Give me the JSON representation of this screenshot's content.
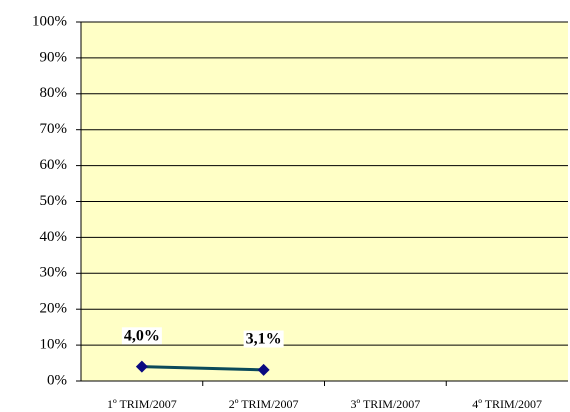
{
  "chart_data": {
    "type": "line",
    "categories": [
      "1º TRIM/2007",
      "2º TRIM/2007",
      "3º TRIM/2007",
      "4º TRIM/2007"
    ],
    "series": [
      {
        "color": "#0b4a5a",
        "marker_color": "#0a0a80",
        "values": [
          4.0,
          3.1,
          null,
          null
        ],
        "value_labels": [
          "4,0%",
          "3,1%",
          null,
          null
        ]
      }
    ],
    "ylim": [
      0,
      100
    ],
    "yticks": [
      {
        "value": 0,
        "label": "0%"
      },
      {
        "value": 10,
        "label": "10%"
      },
      {
        "value": 20,
        "label": "20%"
      },
      {
        "value": 30,
        "label": "30%"
      },
      {
        "value": 40,
        "label": "40%"
      },
      {
        "value": 50,
        "label": "50%"
      },
      {
        "value": 60,
        "label": "60%"
      },
      {
        "value": 70,
        "label": "70%"
      },
      {
        "value": 80,
        "label": "80%"
      },
      {
        "value": 90,
        "label": "90%"
      },
      {
        "value": 100,
        "label": "100%"
      }
    ],
    "grid": true,
    "plot_background": "#ffffc6"
  }
}
